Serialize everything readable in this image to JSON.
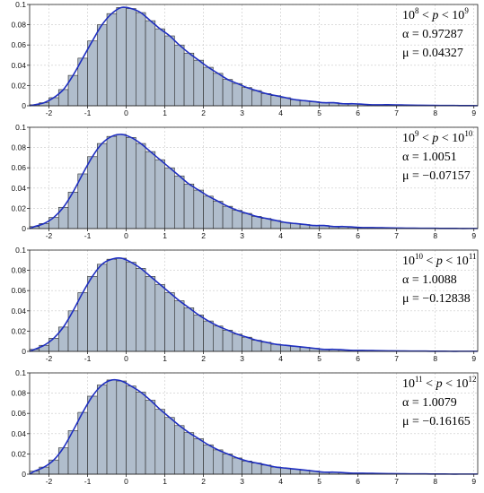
{
  "chart_data": [
    {
      "type": "bar",
      "annotation": {
        "range_lo_exp": "8",
        "range_hi_exp": "9",
        "alpha_text": "α = 0.97287",
        "mu_text": "μ = 0.04327"
      },
      "alpha": 0.97287,
      "mu": 0.04327,
      "xlim": [
        -2.5,
        9.1
      ],
      "ylim": [
        0,
        0.1
      ],
      "xticks": [
        -2,
        -1,
        0,
        1,
        2,
        3,
        4,
        5,
        6,
        7,
        8,
        9
      ],
      "yticks": [
        0,
        0.02,
        0.04,
        0.06,
        0.08,
        0.1
      ],
      "ytick_labels": [
        "0",
        "0.02",
        "0.04",
        "0.06",
        "0.08",
        "0.1"
      ],
      "bin_width": 0.25,
      "x": [
        -2.375,
        -2.125,
        -1.875,
        -1.625,
        -1.375,
        -1.125,
        -0.875,
        -0.625,
        -0.375,
        -0.125,
        0.125,
        0.375,
        0.625,
        0.875,
        1.125,
        1.375,
        1.625,
        1.875,
        2.125,
        2.375,
        2.625,
        2.875,
        3.125,
        3.375,
        3.625,
        3.875,
        4.125,
        4.375,
        4.625,
        4.875,
        5.125,
        5.375,
        5.625,
        5.875,
        6.125,
        6.375,
        6.625,
        6.875,
        7.125,
        7.375,
        7.625,
        7.875,
        8.125,
        8.375,
        8.625,
        8.875
      ],
      "values": [
        0.001,
        0.003,
        0.008,
        0.016,
        0.03,
        0.047,
        0.064,
        0.08,
        0.091,
        0.097,
        0.096,
        0.092,
        0.084,
        0.076,
        0.069,
        0.06,
        0.052,
        0.045,
        0.038,
        0.032,
        0.026,
        0.022,
        0.018,
        0.015,
        0.012,
        0.01,
        0.008,
        0.006,
        0.005,
        0.004,
        0.003,
        0.003,
        0.002,
        0.002,
        0.0015,
        0.001,
        0.001,
        0.001,
        0.0008,
        0.0006,
        0.0005,
        0.0004,
        0.0003,
        0.0003,
        0.0002,
        0.0002
      ],
      "curve_y": [
        0.001,
        0.003,
        0.008,
        0.016,
        0.03,
        0.047,
        0.064,
        0.08,
        0.091,
        0.097,
        0.096,
        0.092,
        0.084,
        0.076,
        0.069,
        0.06,
        0.052,
        0.045,
        0.038,
        0.032,
        0.026,
        0.022,
        0.018,
        0.015,
        0.012,
        0.01,
        0.008,
        0.006,
        0.005,
        0.004,
        0.003,
        0.003,
        0.002,
        0.002,
        0.0015,
        0.001,
        0.001,
        0.001,
        0.0008,
        0.0006,
        0.0005,
        0.0004,
        0.0003,
        0.0003,
        0.0002,
        0.0002
      ],
      "grid": true,
      "bar_color": "#b0bdcc",
      "curve_color": "#1f2fc0"
    },
    {
      "type": "bar",
      "annotation": {
        "range_lo_exp": "9",
        "range_hi_exp": "10",
        "alpha_text": "α = 1.0051",
        "mu_text": "μ = −0.07157"
      },
      "alpha": 1.0051,
      "mu": -0.07157,
      "xlim": [
        -2.5,
        9.1
      ],
      "ylim": [
        0,
        0.1
      ],
      "xticks": [
        -2,
        -1,
        0,
        1,
        2,
        3,
        4,
        5,
        6,
        7,
        8,
        9
      ],
      "yticks": [
        0,
        0.02,
        0.04,
        0.06,
        0.08,
        0.1
      ],
      "ytick_labels": [
        "0",
        "0.02",
        "0.04",
        "0.06",
        "0.08",
        "0.1"
      ],
      "bin_width": 0.25,
      "x": [
        -2.375,
        -2.125,
        -1.875,
        -1.625,
        -1.375,
        -1.125,
        -0.875,
        -0.625,
        -0.375,
        -0.125,
        0.125,
        0.375,
        0.625,
        0.875,
        1.125,
        1.375,
        1.625,
        1.875,
        2.125,
        2.375,
        2.625,
        2.875,
        3.125,
        3.375,
        3.625,
        3.875,
        4.125,
        4.375,
        4.625,
        4.875,
        5.125,
        5.375,
        5.625,
        5.875,
        6.125,
        6.375,
        6.625,
        6.875,
        7.125,
        7.375,
        7.625,
        7.875,
        8.125,
        8.375,
        8.625,
        8.875
      ],
      "values": [
        0.002,
        0.005,
        0.011,
        0.021,
        0.036,
        0.054,
        0.071,
        0.084,
        0.091,
        0.093,
        0.09,
        0.084,
        0.076,
        0.068,
        0.06,
        0.052,
        0.044,
        0.038,
        0.032,
        0.027,
        0.022,
        0.018,
        0.015,
        0.012,
        0.01,
        0.008,
        0.006,
        0.005,
        0.004,
        0.003,
        0.003,
        0.002,
        0.002,
        0.0015,
        0.001,
        0.001,
        0.0008,
        0.0006,
        0.0005,
        0.0004,
        0.0003,
        0.0003,
        0.0002,
        0.0002,
        0.0001,
        0.0001
      ],
      "curve_y": [
        0.002,
        0.005,
        0.011,
        0.021,
        0.036,
        0.054,
        0.071,
        0.084,
        0.091,
        0.093,
        0.09,
        0.084,
        0.076,
        0.068,
        0.06,
        0.052,
        0.044,
        0.038,
        0.032,
        0.027,
        0.022,
        0.018,
        0.015,
        0.012,
        0.01,
        0.008,
        0.006,
        0.005,
        0.004,
        0.003,
        0.003,
        0.002,
        0.002,
        0.0015,
        0.001,
        0.001,
        0.0008,
        0.0006,
        0.0005,
        0.0004,
        0.0003,
        0.0003,
        0.0002,
        0.0002,
        0.0001,
        0.0001
      ],
      "grid": true,
      "bar_color": "#b0bdcc",
      "curve_color": "#1f2fc0"
    },
    {
      "type": "bar",
      "annotation": {
        "range_lo_exp": "10",
        "range_hi_exp": "11",
        "alpha_text": "α = 1.0088",
        "mu_text": "μ = −0.12838"
      },
      "alpha": 1.0088,
      "mu": -0.12838,
      "xlim": [
        -2.5,
        9.1
      ],
      "ylim": [
        0,
        0.1
      ],
      "xticks": [
        -2,
        -1,
        0,
        1,
        2,
        3,
        4,
        5,
        6,
        7,
        8,
        9
      ],
      "yticks": [
        0,
        0.02,
        0.04,
        0.06,
        0.08,
        0.1
      ],
      "ytick_labels": [
        "0",
        "0.02",
        "0.04",
        "0.06",
        "0.08",
        "0.1"
      ],
      "bin_width": 0.25,
      "x": [
        -2.375,
        -2.125,
        -1.875,
        -1.625,
        -1.375,
        -1.125,
        -0.875,
        -0.625,
        -0.375,
        -0.125,
        0.125,
        0.375,
        0.625,
        0.875,
        1.125,
        1.375,
        1.625,
        1.875,
        2.125,
        2.375,
        2.625,
        2.875,
        3.125,
        3.375,
        3.625,
        3.875,
        4.125,
        4.375,
        4.625,
        4.875,
        5.125,
        5.375,
        5.625,
        5.875,
        6.125,
        6.375,
        6.625,
        6.875,
        7.125,
        7.375,
        7.625,
        7.875,
        8.125,
        8.375,
        8.625,
        8.875
      ],
      "values": [
        0.002,
        0.006,
        0.013,
        0.024,
        0.04,
        0.058,
        0.074,
        0.086,
        0.091,
        0.092,
        0.088,
        0.082,
        0.074,
        0.066,
        0.058,
        0.05,
        0.043,
        0.036,
        0.03,
        0.025,
        0.021,
        0.017,
        0.014,
        0.011,
        0.009,
        0.007,
        0.006,
        0.005,
        0.004,
        0.003,
        0.002,
        0.002,
        0.0015,
        0.001,
        0.001,
        0.0008,
        0.0006,
        0.0005,
        0.0004,
        0.0003,
        0.0003,
        0.0002,
        0.0002,
        0.0001,
        0.0001,
        0.0001
      ],
      "curve_y": [
        0.002,
        0.006,
        0.013,
        0.024,
        0.04,
        0.058,
        0.074,
        0.086,
        0.091,
        0.092,
        0.088,
        0.082,
        0.074,
        0.066,
        0.058,
        0.05,
        0.043,
        0.036,
        0.03,
        0.025,
        0.021,
        0.017,
        0.014,
        0.011,
        0.009,
        0.007,
        0.006,
        0.005,
        0.004,
        0.003,
        0.002,
        0.002,
        0.0015,
        0.001,
        0.001,
        0.0008,
        0.0006,
        0.0005,
        0.0004,
        0.0003,
        0.0003,
        0.0002,
        0.0002,
        0.0001,
        0.0001,
        0.0001
      ],
      "grid": true,
      "bar_color": "#b0bdcc",
      "curve_color": "#1f2fc0"
    },
    {
      "type": "bar",
      "annotation": {
        "range_lo_exp": "11",
        "range_hi_exp": "12",
        "alpha_text": "α = 1.0079",
        "mu_text": "μ = −0.16165"
      },
      "alpha": 1.0079,
      "mu": -0.16165,
      "xlim": [
        -2.5,
        9.1
      ],
      "ylim": [
        0,
        0.1
      ],
      "xticks": [
        -2,
        -1,
        0,
        1,
        2,
        3,
        4,
        5,
        6,
        7,
        8,
        9
      ],
      "yticks": [
        0,
        0.02,
        0.04,
        0.06,
        0.08,
        0.1
      ],
      "ytick_labels": [
        "0",
        "0.02",
        "0.04",
        "0.06",
        "0.08",
        "0.1"
      ],
      "bin_width": 0.25,
      "x": [
        -2.375,
        -2.125,
        -1.875,
        -1.625,
        -1.375,
        -1.125,
        -0.875,
        -0.625,
        -0.375,
        -0.125,
        0.125,
        0.375,
        0.625,
        0.875,
        1.125,
        1.375,
        1.625,
        1.875,
        2.125,
        2.375,
        2.625,
        2.875,
        3.125,
        3.375,
        3.625,
        3.875,
        4.125,
        4.375,
        4.625,
        4.875,
        5.125,
        5.375,
        5.625,
        5.875,
        6.125,
        6.375,
        6.625,
        6.875,
        7.125,
        7.375,
        7.625,
        7.875,
        8.125,
        8.375,
        8.625,
        8.875
      ],
      "values": [
        0.003,
        0.007,
        0.014,
        0.026,
        0.043,
        0.061,
        0.077,
        0.088,
        0.093,
        0.092,
        0.087,
        0.081,
        0.073,
        0.064,
        0.056,
        0.048,
        0.041,
        0.035,
        0.029,
        0.024,
        0.02,
        0.016,
        0.013,
        0.011,
        0.009,
        0.007,
        0.006,
        0.005,
        0.004,
        0.003,
        0.002,
        0.002,
        0.0015,
        0.001,
        0.001,
        0.0008,
        0.0006,
        0.0005,
        0.0004,
        0.0003,
        0.0003,
        0.0002,
        0.0002,
        0.0001,
        0.0001,
        0.0001
      ],
      "curve_y": [
        0.003,
        0.007,
        0.014,
        0.026,
        0.043,
        0.061,
        0.077,
        0.088,
        0.093,
        0.092,
        0.087,
        0.081,
        0.073,
        0.064,
        0.056,
        0.048,
        0.041,
        0.035,
        0.029,
        0.024,
        0.02,
        0.016,
        0.013,
        0.011,
        0.009,
        0.007,
        0.006,
        0.005,
        0.004,
        0.003,
        0.002,
        0.002,
        0.0015,
        0.001,
        0.001,
        0.0008,
        0.0006,
        0.0005,
        0.0004,
        0.0003,
        0.0003,
        0.0002,
        0.0002,
        0.0001,
        0.0001,
        0.0001
      ],
      "grid": true,
      "bar_color": "#b0bdcc",
      "curve_color": "#1f2fc0"
    }
  ]
}
